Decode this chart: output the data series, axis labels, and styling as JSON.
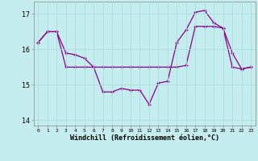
{
  "xlabel": "Windchill (Refroidissement éolien,°C)",
  "background_color": "#c5ecee",
  "line_color": "#880088",
  "grid_color": "#aadddd",
  "hours": [
    0,
    1,
    2,
    3,
    4,
    5,
    6,
    7,
    8,
    9,
    10,
    11,
    12,
    13,
    14,
    15,
    16,
    17,
    18,
    19,
    20,
    21,
    22,
    23
  ],
  "line1": [
    16.2,
    16.5,
    16.5,
    15.9,
    15.85,
    15.75,
    15.5,
    14.8,
    14.8,
    14.9,
    14.85,
    14.85,
    14.45,
    15.05,
    15.1,
    16.2,
    16.55,
    17.05,
    17.1,
    16.75,
    16.6,
    15.9,
    15.45,
    15.5
  ],
  "line2": [
    16.2,
    16.5,
    16.5,
    15.5,
    15.5,
    15.5,
    15.5,
    15.5,
    15.5,
    15.5,
    15.5,
    15.5,
    15.5,
    15.5,
    15.5,
    15.5,
    15.55,
    16.65,
    16.65,
    16.65,
    16.6,
    15.5,
    15.45,
    15.5
  ],
  "ylim": [
    13.85,
    17.35
  ],
  "yticks": [
    14,
    15,
    16,
    17
  ],
  "xlim": [
    -0.5,
    23.5
  ],
  "xticks": [
    0,
    1,
    2,
    3,
    4,
    5,
    6,
    7,
    8,
    9,
    10,
    11,
    12,
    13,
    14,
    15,
    16,
    17,
    18,
    19,
    20,
    21,
    22,
    23
  ]
}
